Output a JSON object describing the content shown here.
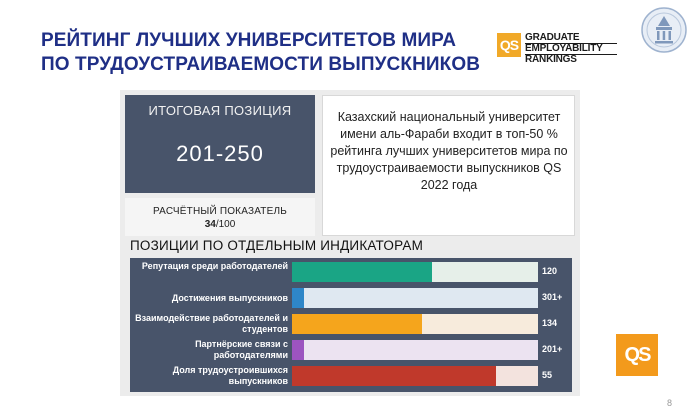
{
  "title": {
    "line1": "РЕЙТИНГ ЛУЧШИХ УНИВЕРСИТЕТОВ МИРА",
    "line2": "ПО ТРУДОУСТРАИВАЕМОСТИ ВЫПУСКНИКОВ"
  },
  "logo": {
    "box_text": "QS",
    "line1": "GRADUATE",
    "line2": "EMPLOYABILITY",
    "line3": "RANKINGS",
    "accent_color": "#f1a928"
  },
  "final_position": {
    "label": "ИТОГОВАЯ ПОЗИЦИЯ",
    "value": "201-250"
  },
  "calculated_score": {
    "label": "РАСЧЁТНЫЙ ПОКАЗАТЕЛЬ",
    "score": "34",
    "max": "/100"
  },
  "info_text": "Казахский национальный университет имени аль-Фараби входит в топ-50 % рейтинга лучших университетов мира по трудоустраиваемости выпускников QS 2022 года",
  "indicators_title": "ПОЗИЦИИ ПО ОТДЕЛЬНЫМ ИНДИКАТОРАМ",
  "indicators": [
    {
      "label": "Репутация среди работодателей",
      "value": "120",
      "fill_fraction": 0.57,
      "color": "#1aa585",
      "track_color": "#e6efe9"
    },
    {
      "label": "Достижения выпускников",
      "value": "301+",
      "fill_fraction": 0.05,
      "color": "#2e86c8",
      "track_color": "#dfe8f1"
    },
    {
      "label": "Взаимодействие работодателей и студентов",
      "value": "134",
      "fill_fraction": 0.53,
      "color": "#f5a51c",
      "track_color": "#f7ebdc"
    },
    {
      "label": "Партнёрские связи с работодателями",
      "value": "201+",
      "fill_fraction": 0.05,
      "color": "#9c54c0",
      "track_color": "#ece3f1"
    },
    {
      "label": "Доля трудоустроившихся выпускников",
      "value": "55",
      "fill_fraction": 0.83,
      "color": "#c0392b",
      "track_color": "#f3e3de"
    }
  ],
  "corner_badge": "QS",
  "page_number": "8"
}
